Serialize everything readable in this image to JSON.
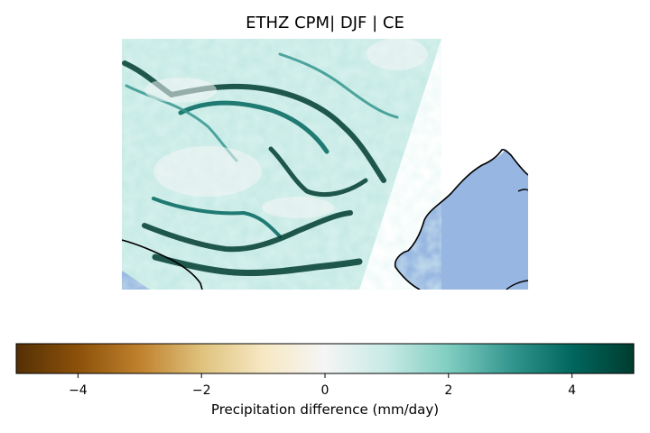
{
  "title": "ETHZ CPM| DJF | CE",
  "map": {
    "field": "precipitation difference",
    "ocean_color": "#97b6e1",
    "coastline_color": "#000000"
  },
  "colorbar": {
    "label": "Precipitation difference (mm/day)",
    "vmin": -5,
    "vmax": 5,
    "ticks": [
      -4,
      -2,
      0,
      2,
      4
    ],
    "tick_labels": [
      "−4",
      "−2",
      "0",
      "2",
      "4"
    ],
    "colormap": "BrBG",
    "colors": [
      "#543005",
      "#8c510a",
      "#bf812d",
      "#dfc27d",
      "#f6e8c3",
      "#f5f5f5",
      "#c7eae5",
      "#80cdc1",
      "#35978f",
      "#01665e",
      "#003c30"
    ]
  }
}
